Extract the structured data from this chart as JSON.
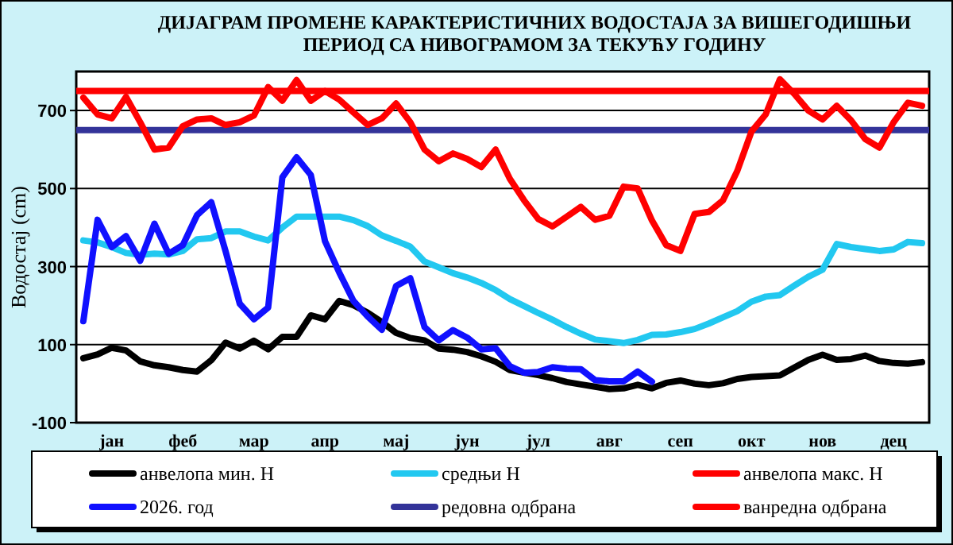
{
  "chart_data": {
    "type": "line",
    "title": "ДИЈАГРАМ ПРОМЕНЕ КАРАКТЕРИСТИЧНИХ ВОДОСТАЈА ЗА ВИШЕГОДИШЊИ\nПЕРИОД СА НИВОГРАМОМ ЗА ТЕКУЋУ ГОДИНУ",
    "ylabel": "Водостај (cm)",
    "ylim": [
      -100,
      800
    ],
    "yticks": [
      -100,
      100,
      300,
      500,
      700
    ],
    "categories": [
      null,
      null,
      "јан",
      null,
      null,
      null,
      null,
      "феб",
      null,
      null,
      null,
      null,
      "мар",
      null,
      null,
      null,
      null,
      "апр",
      null,
      null,
      null,
      null,
      "мај",
      null,
      null,
      null,
      null,
      "јун",
      null,
      null,
      null,
      null,
      "јул",
      null,
      null,
      null,
      null,
      "авг",
      null,
      null,
      null,
      null,
      "сеп",
      null,
      null,
      null,
      null,
      "окт",
      null,
      null,
      null,
      null,
      "нов",
      null,
      null,
      null,
      null,
      "дец",
      null,
      null
    ],
    "grid": "y",
    "legend": "bottom",
    "marker": "none",
    "line_style": "solid",
    "series": [
      {
        "name": "анвелопа мин. H",
        "color": "#000000",
        "values": [
          65,
          75,
          92,
          85,
          57,
          47,
          42,
          35,
          31,
          60,
          105,
          90,
          110,
          88,
          120,
          120,
          175,
          165,
          212,
          201,
          182,
          158,
          130,
          117,
          111,
          90,
          87,
          81,
          70,
          56,
          35,
          28,
          22,
          14,
          4,
          -2,
          -8,
          -14,
          -12,
          -3,
          -12,
          2,
          8,
          0,
          -4,
          1,
          12,
          17,
          19,
          21,
          41,
          61,
          74,
          61,
          63,
          72,
          58,
          53,
          51,
          55
        ]
      },
      {
        "name": "средњи H",
        "color": "#22c8f0",
        "values": [
          367,
          362,
          350,
          335,
          330,
          333,
          331,
          340,
          370,
          373,
          390,
          390,
          377,
          367,
          400,
          428,
          428,
          428,
          428,
          419,
          404,
          380,
          366,
          351,
          313,
          298,
          283,
          272,
          258,
          240,
          217,
          199,
          181,
          164,
          145,
          128,
          113,
          109,
          104,
          112,
          125,
          126,
          132,
          140,
          154,
          170,
          186,
          210,
          223,
          227,
          251,
          274,
          292,
          358,
          350,
          345,
          340,
          344,
          363,
          360
        ]
      },
      {
        "name": "анвелопа макс. H",
        "color": "#ff0000",
        "values": [
          733,
          690,
          680,
          735,
          670,
          600,
          605,
          660,
          677,
          680,
          663,
          670,
          687,
          760,
          725,
          778,
          725,
          750,
          728,
          695,
          663,
          680,
          718,
          670,
          600,
          570,
          590,
          576,
          555,
          600,
          525,
          470,
          422,
          403,
          428,
          453,
          420,
          430,
          505,
          500,
          418,
          355,
          340,
          435,
          440,
          470,
          545,
          646,
          690,
          780,
          743,
          700,
          677,
          712,
          675,
          627,
          605,
          670,
          720,
          712
        ]
      },
      {
        "name": "2026. год",
        "color": "#1010ff",
        "values": [
          160,
          420,
          350,
          378,
          315,
          410,
          333,
          355,
          432,
          465,
          340,
          205,
          165,
          195,
          529,
          580,
          535,
          365,
          285,
          212,
          172,
          138,
          250,
          270,
          145,
          111,
          137,
          118,
          88,
          91,
          45,
          28,
          30,
          42,
          38,
          37,
          9,
          6,
          6,
          31,
          5,
          null,
          null,
          null,
          null,
          null,
          null,
          null,
          null,
          null,
          null,
          null,
          null,
          null,
          null,
          null,
          null,
          null,
          null,
          null
        ]
      }
    ],
    "ref_lines": [
      {
        "axis": "y",
        "value": 650,
        "label": "редовна одбрана",
        "color": "#333399"
      },
      {
        "axis": "y",
        "value": 750,
        "label": "ванредна одбрана",
        "color": "#ff0000"
      }
    ]
  }
}
